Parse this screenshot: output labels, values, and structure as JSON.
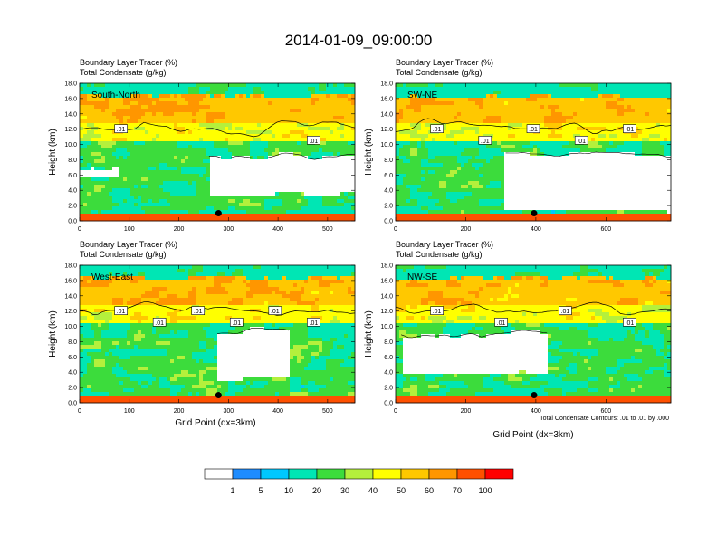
{
  "figure": {
    "title": "2014-01-09_09:00:00",
    "footnote": "Total Condensate Contours: .01 to .01 by .000"
  },
  "chart_data": [
    {
      "type": "heatmap",
      "panel_label": "South-North",
      "title_line1": "Boundary Layer Tracer    (%)",
      "title_line2": "Total Condensate    (g/kg)",
      "ylabel": "Height (km)",
      "xlabel": "",
      "xlim": [
        0,
        555
      ],
      "ylim": [
        0,
        18
      ],
      "xticks": [
        0,
        100,
        200,
        300,
        400,
        500
      ],
      "yticks": [
        "0.0",
        "2.0",
        "4.0",
        "6.0",
        "8.0",
        "10.0",
        "12.0",
        "14.0",
        "16.0",
        "18.0"
      ],
      "contour_labels": [
        ".01",
        ".01"
      ],
      "marker": {
        "x": 280,
        "y": 1.0
      },
      "color_variable": "Boundary Layer Tracer (%)"
    },
    {
      "type": "heatmap",
      "panel_label": "SW-NE",
      "title_line1": "Boundary Layer Tracer    (%)",
      "title_line2": "Total Condensate    (g/kg)",
      "ylabel": "Height (km)",
      "xlabel": "",
      "xlim": [
        0,
        785
      ],
      "ylim": [
        0,
        18
      ],
      "xticks": [
        0,
        200,
        400,
        600
      ],
      "yticks": [
        "0.0",
        "2.0",
        "4.0",
        "6.0",
        "8.0",
        "10.0",
        "12.0",
        "14.0",
        "16.0",
        "18.0"
      ],
      "contour_labels": [
        ".01",
        ".01",
        ".01",
        ".01",
        ".01"
      ],
      "marker": {
        "x": 395,
        "y": 1.0
      },
      "color_variable": "Boundary Layer Tracer (%)"
    },
    {
      "type": "heatmap",
      "panel_label": "West-East",
      "title_line1": "Boundary Layer Tracer    (%)",
      "title_line2": "Total Condensate    (g/kg)",
      "ylabel": "Height (km)",
      "xlabel": "Grid Point (dx=3km)",
      "xlim": [
        0,
        555
      ],
      "ylim": [
        0,
        18
      ],
      "xticks": [
        0,
        100,
        200,
        300,
        400,
        500
      ],
      "yticks": [
        "0.0",
        "2.0",
        "4.0",
        "6.0",
        "8.0",
        "10.0",
        "12.0",
        "14.0",
        "16.0",
        "18.0"
      ],
      "contour_labels": [
        ".01",
        ".01",
        ".01",
        ".01",
        ".01",
        ".01"
      ],
      "marker": {
        "x": 280,
        "y": 1.0
      },
      "color_variable": "Boundary Layer Tracer (%)"
    },
    {
      "type": "heatmap",
      "panel_label": "NW-SE",
      "title_line1": "Boundary Layer Tracer    (%)",
      "title_line2": "Total Condensate    (g/kg)",
      "ylabel": "Height (km)",
      "xlabel": "Grid Point (dx=3km)",
      "xlim": [
        0,
        785
      ],
      "ylim": [
        0,
        18
      ],
      "xticks": [
        0,
        200,
        400,
        600
      ],
      "yticks": [
        "0.0",
        "2.0",
        "4.0",
        "6.0",
        "8.0",
        "10.0",
        "12.0",
        "14.0",
        "16.0",
        "18.0"
      ],
      "contour_labels": [
        ".01",
        ".01",
        ".01",
        ".01"
      ],
      "marker": {
        "x": 395,
        "y": 1.0
      },
      "color_variable": "Boundary Layer Tracer (%)"
    }
  ],
  "colorbar": {
    "labels": [
      "1",
      "5",
      "10",
      "20",
      "30",
      "40",
      "50",
      "60",
      "70",
      "100"
    ],
    "colors": [
      "#ffffff",
      "#1e8cff",
      "#00c8ff",
      "#00e6b4",
      "#3cdc3c",
      "#b4f03c",
      "#ffff00",
      "#ffc800",
      "#ff9600",
      "#ff5000",
      "#ff0000"
    ]
  },
  "fields": {
    "0": {
      "cloudTop": 16.3,
      "clearTop": 8.4,
      "clearBot": 3.5,
      "clearStart": 0.47,
      "clearEnd": 1.0,
      "leftClearEnd": 0.15,
      "leftClearTop": 7.2,
      "leftClearBot": 5.6
    },
    "1": {
      "cloudTop": 16.3,
      "clearTop": 8.8,
      "clearBot": 1.4,
      "clearStart": 0.4,
      "clearEnd": 1.0,
      "leftClearEnd": 0.0,
      "leftClearTop": 0,
      "leftClearBot": 0
    },
    "2": {
      "cloudTop": 16.3,
      "clearTop": 9.5,
      "clearBot": 3.2,
      "clearStart": 0.5,
      "clearEnd": 0.76,
      "leftClearEnd": 0.0,
      "leftClearTop": 0,
      "leftClearBot": 0
    },
    "3": {
      "cloudTop": 16.3,
      "clearTop": 9.0,
      "clearBot": 3.8,
      "clearStart": 0.02,
      "clearEnd": 0.55,
      "leftClearEnd": 0.0,
      "leftClearTop": 0,
      "leftClearBot": 0
    }
  }
}
